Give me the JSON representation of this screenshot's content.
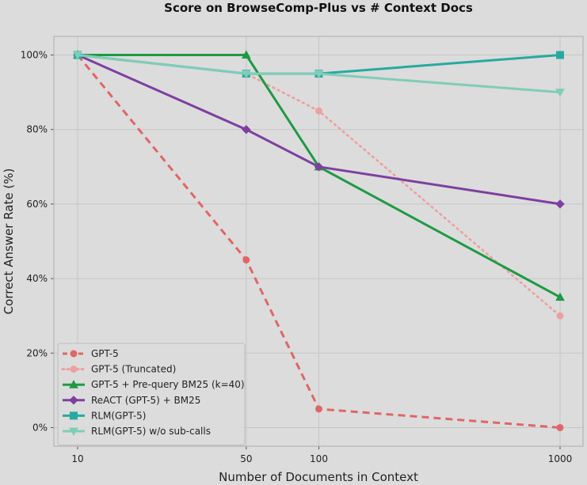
{
  "chart_data": {
    "type": "line",
    "title": "Score on BrowseComp-Plus vs # Context Docs",
    "xlabel": "Number of Documents in Context",
    "ylabel": "Correct Answer Rate (%)",
    "x_scale": "log",
    "x": [
      10,
      50,
      100,
      1000
    ],
    "x_tick_labels": [
      "10",
      "50",
      "100",
      "1000"
    ],
    "ylim": [
      -5,
      105
    ],
    "y_ticks": [
      0,
      20,
      40,
      60,
      80,
      100
    ],
    "y_tick_labels": [
      "0%",
      "20%",
      "40%",
      "60%",
      "80%",
      "100%"
    ],
    "grid": true,
    "legend_position": "lower-left",
    "series": [
      {
        "name": "GPT-5",
        "values": [
          100,
          45,
          5,
          0
        ],
        "color": "#e06666",
        "dash": "dashed",
        "marker": "circle"
      },
      {
        "name": "GPT-5 (Truncated)",
        "values": [
          100,
          95,
          85,
          30
        ],
        "color": "#eda0a0",
        "dash": "dotted",
        "marker": "circle"
      },
      {
        "name": "GPT-5 + Pre-query BM25 (k=40)",
        "values": [
          100,
          100,
          70,
          35
        ],
        "color": "#1e9a44",
        "dash": "solid",
        "marker": "triangle-up"
      },
      {
        "name": "ReACT (GPT-5) + BM25",
        "values": [
          100,
          80,
          70,
          60
        ],
        "color": "#7e3fa0",
        "dash": "solid",
        "marker": "diamond"
      },
      {
        "name": "RLM(GPT-5)",
        "values": [
          100,
          95,
          95,
          100
        ],
        "color": "#26aaa0",
        "dash": "solid",
        "marker": "square"
      },
      {
        "name": "RLM(GPT-5) w/o sub-calls",
        "values": [
          100,
          95,
          95,
          90
        ],
        "color": "#7fcdb8",
        "dash": "solid",
        "marker": "triangle-down"
      }
    ]
  }
}
